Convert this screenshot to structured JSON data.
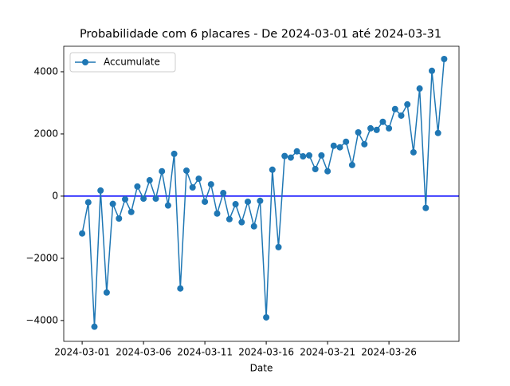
{
  "chart_data": {
    "type": "line",
    "title": "Probabilidade com 6 placares - De 2024-03-01 até 2024-03-31",
    "x_label": "Date",
    "x": [
      "2024-03-01T00:00",
      "2024-03-01T12:00",
      "2024-03-02T00:00",
      "2024-03-02T12:00",
      "2024-03-03T00:00",
      "2024-03-03T12:00",
      "2024-03-04T00:00",
      "2024-03-04T12:00",
      "2024-03-05T00:00",
      "2024-03-05T12:00",
      "2024-03-06T00:00",
      "2024-03-06T12:00",
      "2024-03-07T00:00",
      "2024-03-07T12:00",
      "2024-03-08T00:00",
      "2024-03-08T12:00",
      "2024-03-09T00:00",
      "2024-03-09T12:00",
      "2024-03-10T00:00",
      "2024-03-10T12:00",
      "2024-03-11T00:00",
      "2024-03-11T12:00",
      "2024-03-12T00:00",
      "2024-03-12T12:00",
      "2024-03-13T00:00",
      "2024-03-13T12:00",
      "2024-03-14T00:00",
      "2024-03-14T12:00",
      "2024-03-15T00:00",
      "2024-03-15T12:00",
      "2024-03-16T00:00",
      "2024-03-16T12:00",
      "2024-03-17T00:00",
      "2024-03-17T12:00",
      "2024-03-18T00:00",
      "2024-03-18T12:00",
      "2024-03-19T00:00",
      "2024-03-19T12:00",
      "2024-03-20T00:00",
      "2024-03-20T12:00",
      "2024-03-21T00:00",
      "2024-03-21T12:00",
      "2024-03-22T00:00",
      "2024-03-22T12:00",
      "2024-03-23T00:00",
      "2024-03-23T12:00",
      "2024-03-24T00:00",
      "2024-03-24T12:00",
      "2024-03-25T00:00",
      "2024-03-25T12:00",
      "2024-03-26T00:00",
      "2024-03-26T12:00",
      "2024-03-27T00:00",
      "2024-03-27T12:00",
      "2024-03-28T00:00",
      "2024-03-28T12:00",
      "2024-03-29T00:00",
      "2024-03-29T12:00",
      "2024-03-30T00:00",
      "2024-03-30T12:00"
    ],
    "series": [
      {
        "name": "Accumulate",
        "color": "#1f77b4",
        "values": [
          -1200,
          -200,
          -4200,
          180,
          -3100,
          -250,
          -720,
          -100,
          -510,
          310,
          -80,
          510,
          -80,
          800,
          -300,
          1360,
          -2970,
          820,
          280,
          560,
          -180,
          380,
          -560,
          100,
          -740,
          -260,
          -840,
          -180,
          -970,
          -150,
          -3900,
          850,
          -1640,
          1290,
          1240,
          1440,
          1280,
          1310,
          870,
          1310,
          800,
          1620,
          1570,
          1750,
          1000,
          2050,
          1670,
          2180,
          2130,
          2390,
          2180,
          2800,
          2590,
          2950,
          1410,
          3460,
          -380,
          4030,
          2030,
          4410
        ]
      }
    ],
    "xlim": [
      "2024-02-28T12:00",
      "2024-03-31T17:00"
    ],
    "xticks": [
      "2024-03-01",
      "2024-03-06",
      "2024-03-11",
      "2024-03-16",
      "2024-03-21",
      "2024-03-26"
    ],
    "ylim": [
      -4670,
      4820
    ],
    "yticks": [
      {
        "value": -4000,
        "label": "−4000"
      },
      {
        "value": -2000,
        "label": "−2000"
      },
      0,
      2000,
      4000
    ],
    "hline": {
      "value": 0,
      "color": "#0000ff"
    },
    "legend": "upper left"
  }
}
